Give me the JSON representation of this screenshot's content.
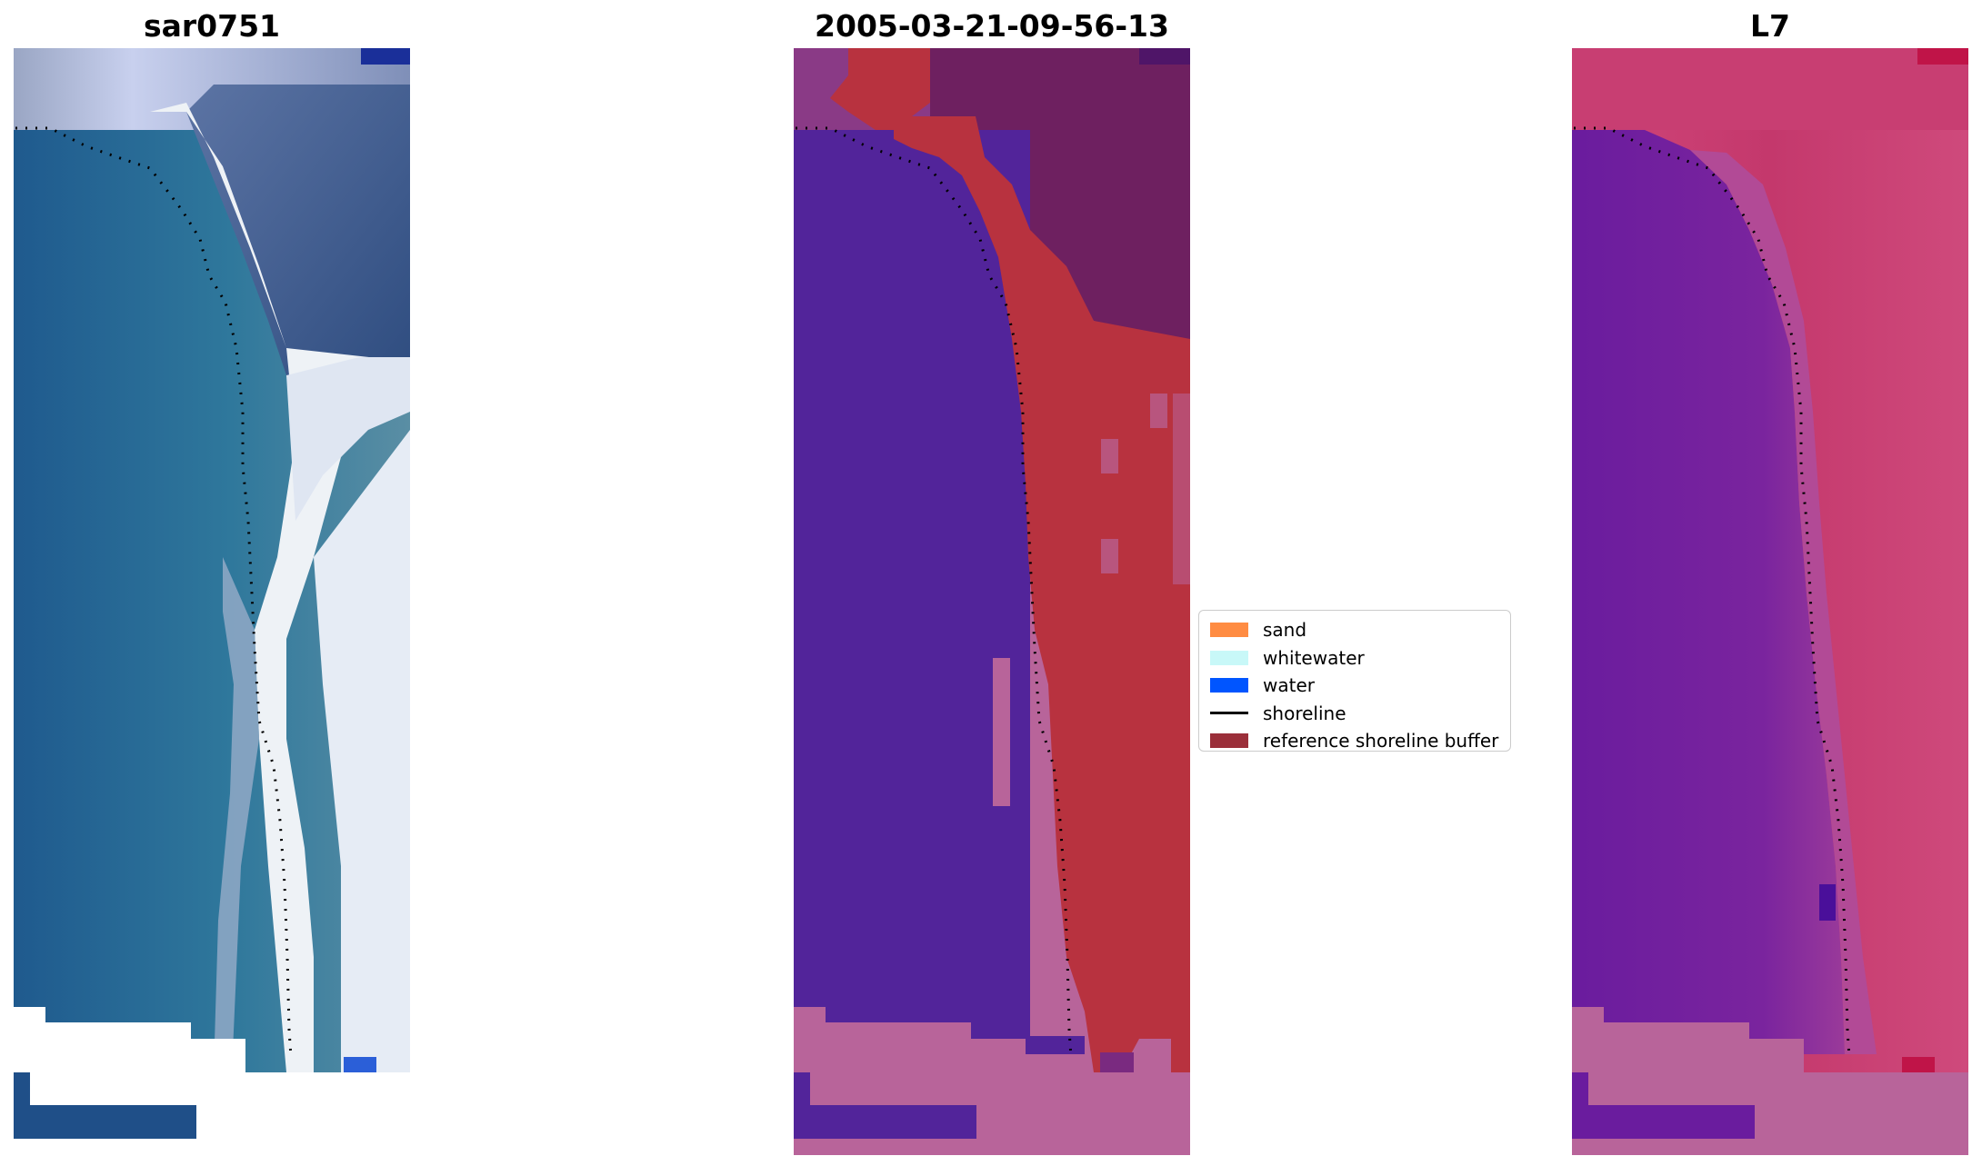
{
  "titles": {
    "rgb": "sar0751",
    "classified": "2005-03-21-09-56-13",
    "mndwi": "L7"
  },
  "legend": {
    "items": [
      {
        "label": "sand",
        "kind": "patch",
        "color": "#ff8c42"
      },
      {
        "label": "whitewater",
        "kind": "patch",
        "color": "#c8f8f8"
      },
      {
        "label": "water",
        "kind": "patch",
        "color": "#0055ff"
      },
      {
        "label": "shoreline",
        "kind": "line",
        "color": "#000000"
      },
      {
        "label": "reference shoreline buffer",
        "kind": "patch",
        "color": "#9b2f3a"
      }
    ]
  },
  "colors": {
    "water_dark": "#1f5a8e",
    "water_mid": "#2e6f9a",
    "whitewater": "#eef2f6",
    "surf_blue": "#8fa6cc",
    "land_rgb": "#3d5a86",
    "class_water": "#52249a",
    "class_buffer": "#b8323f",
    "class_land": "#6e2060",
    "class_nodata": "#b8649a",
    "mndwi_land": "#c83a6e",
    "mndwi_water": "#6e1fa0",
    "mndwi_nodata": "#b8649a",
    "shoreline": "#000000"
  }
}
